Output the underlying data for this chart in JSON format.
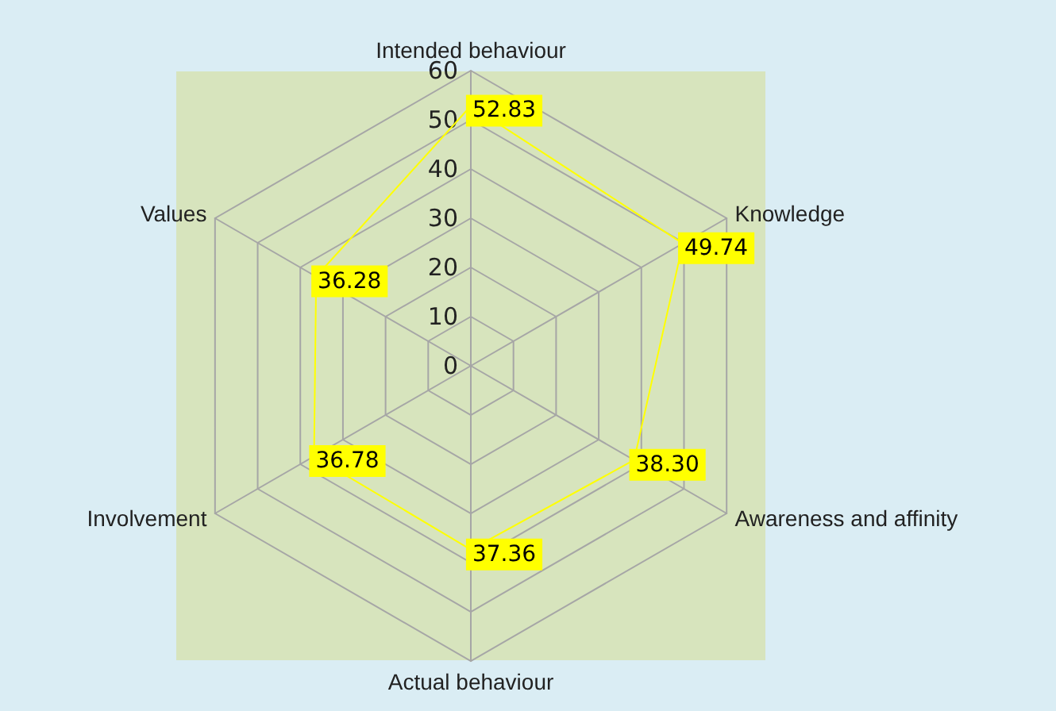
{
  "chart_data": {
    "type": "radar",
    "categories": [
      "Intended behaviour",
      "Knowledge",
      "Awareness and affinity",
      "Actual behaviour",
      "Involvement",
      "Values"
    ],
    "series": [
      {
        "color": "#ffff00",
        "values": [
          52.83,
          49.74,
          38.3,
          37.36,
          36.78,
          36.28
        ],
        "value_labels": [
          "52.83",
          "49.74",
          "38.30",
          "37.36",
          "36.78",
          "36.28"
        ]
      }
    ],
    "ylim": [
      0,
      60
    ],
    "yticks": [
      0,
      10,
      20,
      30,
      40,
      50,
      60
    ],
    "grid": true
  }
}
